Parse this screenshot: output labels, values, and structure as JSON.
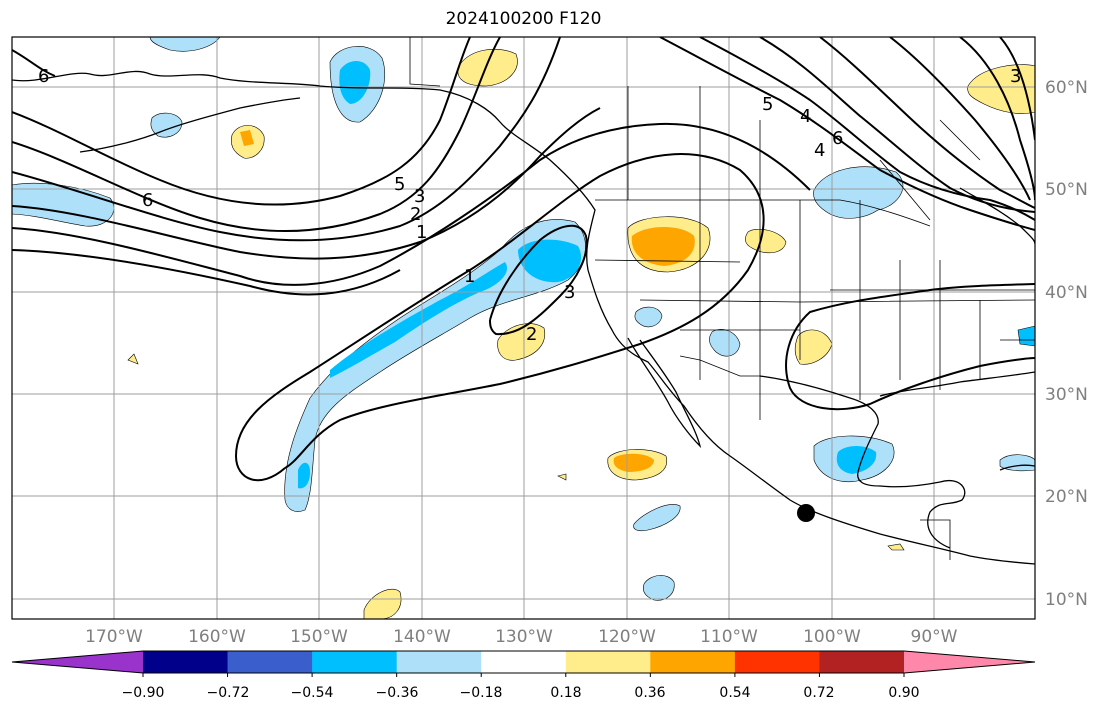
{
  "title": "2024100200 F120",
  "longitude_labels": [
    "170°W",
    "160°W",
    "150°W",
    "140°W",
    "130°W",
    "120°W",
    "110°W",
    "100°W",
    "90°W"
  ],
  "latitude_labels": [
    "60°N",
    "50°N",
    "40°N",
    "30°N",
    "20°N",
    "10°N"
  ],
  "colorbar": {
    "tick_labels": [
      "−0.90",
      "−0.72",
      "−0.54",
      "−0.36",
      "−0.18",
      "0.18",
      "0.36",
      "0.54",
      "0.72",
      "0.90"
    ],
    "colors": [
      "#9933cc",
      "#00008b",
      "#3a5fcd",
      "#00bfff",
      "#aee0fa",
      "#ffffff",
      "#ffec8b",
      "#ffa500",
      "#ff3300",
      "#b22222",
      "#ff88aa"
    ]
  },
  "contour_labels": [
    "6",
    "6",
    "5",
    "3",
    "2",
    "1",
    "1",
    "3",
    "2",
    "5",
    "4",
    "6",
    "4",
    "3"
  ],
  "marker": "black-dot"
}
